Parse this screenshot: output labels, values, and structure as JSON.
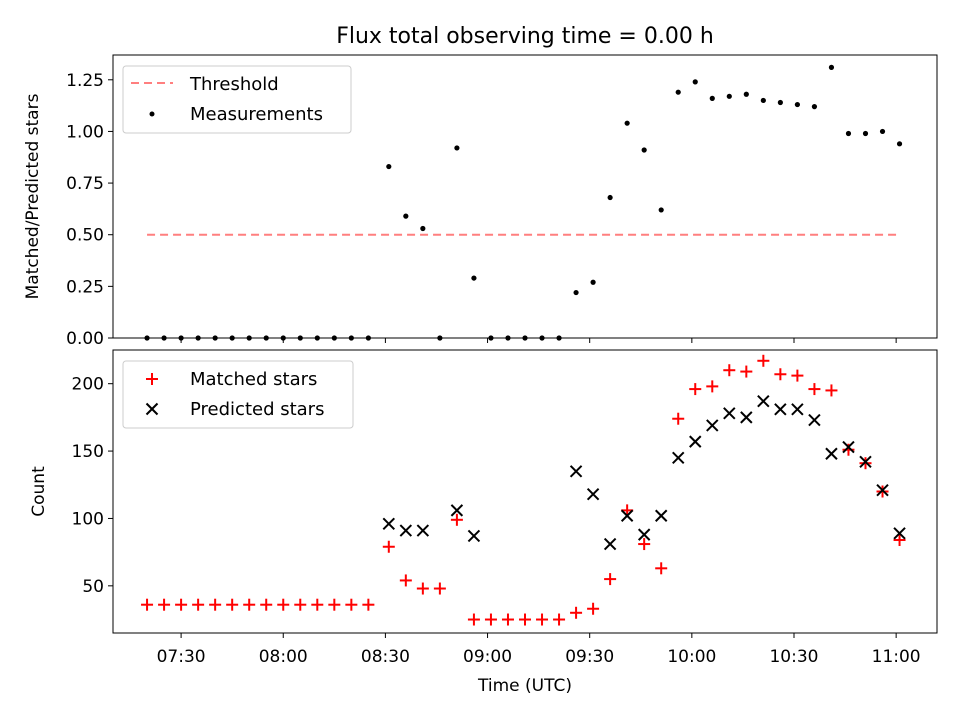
{
  "chart_data": [
    {
      "type": "scatter",
      "title": "Flux total observing time = 0.00 h",
      "xlabel": "",
      "ylabel": "Matched/Predicted stars",
      "xlim": [
        "07:10",
        "11:12"
      ],
      "ylim": [
        0,
        1.37
      ],
      "yticks": [
        0.0,
        0.25,
        0.5,
        0.75,
        1.0,
        1.25
      ],
      "ytick_labels": [
        "0.00",
        "0.25",
        "0.50",
        "0.75",
        "1.00",
        "1.25"
      ],
      "legend_position": "top-left",
      "series": [
        {
          "name": "Threshold",
          "kind": "dashed-line",
          "color": "#ff7f7f",
          "x": [
            "07:20",
            "11:01"
          ],
          "y": [
            0.5,
            0.5
          ]
        },
        {
          "name": "Measurements",
          "kind": "dot",
          "color": "#000000",
          "x": [
            "07:20",
            "07:25",
            "07:30",
            "07:35",
            "07:40",
            "07:45",
            "07:50",
            "07:55",
            "08:00",
            "08:05",
            "08:10",
            "08:15",
            "08:20",
            "08:25",
            "08:31",
            "08:36",
            "08:41",
            "08:46",
            "08:51",
            "08:56",
            "09:01",
            "09:06",
            "09:11",
            "09:16",
            "09:21",
            "09:26",
            "09:31",
            "09:36",
            "09:41",
            "09:46",
            "09:51",
            "09:56",
            "10:01",
            "10:06",
            "10:11",
            "10:16",
            "10:21",
            "10:26",
            "10:31",
            "10:36",
            "10:41",
            "10:46",
            "10:51",
            "10:56",
            "11:01"
          ],
          "y": [
            0,
            0,
            0,
            0,
            0,
            0,
            0,
            0,
            0,
            0,
            0,
            0,
            0,
            0,
            0.83,
            0.59,
            0.53,
            0,
            0.92,
            0.29,
            0,
            0,
            0,
            0,
            0,
            0.22,
            0.27,
            0.68,
            1.04,
            0.91,
            0.62,
            1.19,
            1.24,
            1.16,
            1.17,
            1.18,
            1.15,
            1.14,
            1.13,
            1.12,
            1.31,
            0.99,
            0.99,
            1.0,
            0.94
          ]
        }
      ]
    },
    {
      "type": "scatter",
      "title": "",
      "xlabel": "Time (UTC)",
      "ylabel": "Count",
      "xlim": [
        "07:10",
        "11:12"
      ],
      "ylim": [
        15,
        225
      ],
      "xticks": [
        "07:30",
        "08:00",
        "08:30",
        "09:00",
        "09:30",
        "10:00",
        "10:30",
        "11:00"
      ],
      "yticks": [
        50,
        100,
        150,
        200
      ],
      "ytick_labels": [
        "50",
        "100",
        "150",
        "200"
      ],
      "legend_position": "top-left",
      "series": [
        {
          "name": "Matched stars",
          "marker": "plus",
          "color": "#ff0000",
          "x": [
            "07:20",
            "07:25",
            "07:30",
            "07:35",
            "07:40",
            "07:45",
            "07:50",
            "07:55",
            "08:00",
            "08:05",
            "08:10",
            "08:15",
            "08:20",
            "08:25",
            "08:31",
            "08:36",
            "08:41",
            "08:46",
            "08:51",
            "08:56",
            "09:01",
            "09:06",
            "09:11",
            "09:16",
            "09:21",
            "09:26",
            "09:31",
            "09:36",
            "09:41",
            "09:46",
            "09:51",
            "09:56",
            "10:01",
            "10:06",
            "10:11",
            "10:16",
            "10:21",
            "10:26",
            "10:31",
            "10:36",
            "10:41",
            "10:46",
            "10:51",
            "10:56",
            "11:01"
          ],
          "y": [
            36,
            36,
            36,
            36,
            36,
            36,
            36,
            36,
            36,
            36,
            36,
            36,
            36,
            36,
            79,
            54,
            48,
            48,
            99,
            25,
            25,
            25,
            25,
            25,
            25,
            30,
            33,
            55,
            106,
            81,
            63,
            174,
            196,
            198,
            210,
            209,
            217,
            207,
            206,
            196,
            195,
            151,
            141,
            120,
            84
          ]
        },
        {
          "name": "Predicted stars",
          "marker": "x",
          "color": "#000000",
          "x": [
            "08:31",
            "08:36",
            "08:41",
            "08:51",
            "08:56",
            "09:26",
            "09:31",
            "09:36",
            "09:41",
            "09:46",
            "09:51",
            "09:56",
            "10:01",
            "10:06",
            "10:11",
            "10:16",
            "10:21",
            "10:26",
            "10:31",
            "10:36",
            "10:41",
            "10:46",
            "10:51",
            "10:56",
            "11:01"
          ],
          "y": [
            96,
            91,
            91,
            106,
            87,
            135,
            118,
            81,
            102,
            88,
            102,
            145,
            157,
            169,
            178,
            175,
            187,
            181,
            181,
            173,
            148,
            153,
            142,
            121,
            89
          ]
        }
      ]
    }
  ]
}
